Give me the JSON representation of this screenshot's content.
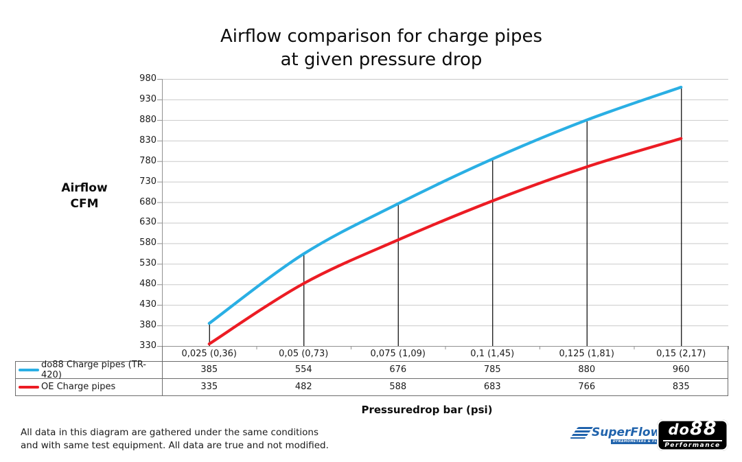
{
  "title": {
    "line1": "Airflow comparison for charge pipes",
    "line2": "at given pressure drop"
  },
  "y_axis": {
    "label_line1": "Airflow",
    "label_line2": "CFM"
  },
  "x_axis": {
    "title": "Pressuredrop bar (psi)"
  },
  "chart_data": {
    "type": "line",
    "title": "Airflow comparison for charge pipes at given pressure drop",
    "xlabel": "Pressuredrop bar (psi)",
    "ylabel": "Airflow CFM",
    "categories": [
      "0,025 (0,36)",
      "0,05 (0,73)",
      "0,075 (1,09)",
      "0,1 (1,45)",
      "0,125 (1,81)",
      "0,15 (2,17)"
    ],
    "series": [
      {
        "name": "do88 Charge pipes (TR-420)",
        "color": "#2AAFE4",
        "values": [
          385,
          554,
          676,
          785,
          880,
          960
        ]
      },
      {
        "name": "OE Charge pipes",
        "color": "#EC1C24",
        "values": [
          335,
          482,
          588,
          683,
          766,
          835
        ]
      }
    ],
    "ylim": [
      330,
      980
    ],
    "ytick_step": 50,
    "grid": true,
    "legend_position": "table-left",
    "drop_lines": true
  },
  "note": {
    "line1": "All data in this diagram are gathered under the same conditions",
    "line2": "and with same test equipment. All data are true and not modified."
  },
  "logos": {
    "superflow": {
      "text": "SuperFlow",
      "trademark": "™",
      "tagline": "DYNAMOMETERS & FLOWBENCHES",
      "color": "#2063ac"
    },
    "do88": {
      "text_do": "do",
      "text_88": "88",
      "subtext": "Performance"
    }
  },
  "colors": {
    "gridline": "#c9c9c9",
    "axis": "#909090",
    "table_border": "#6b6b6b",
    "drop_line": "#000000",
    "background": "#ffffff"
  }
}
